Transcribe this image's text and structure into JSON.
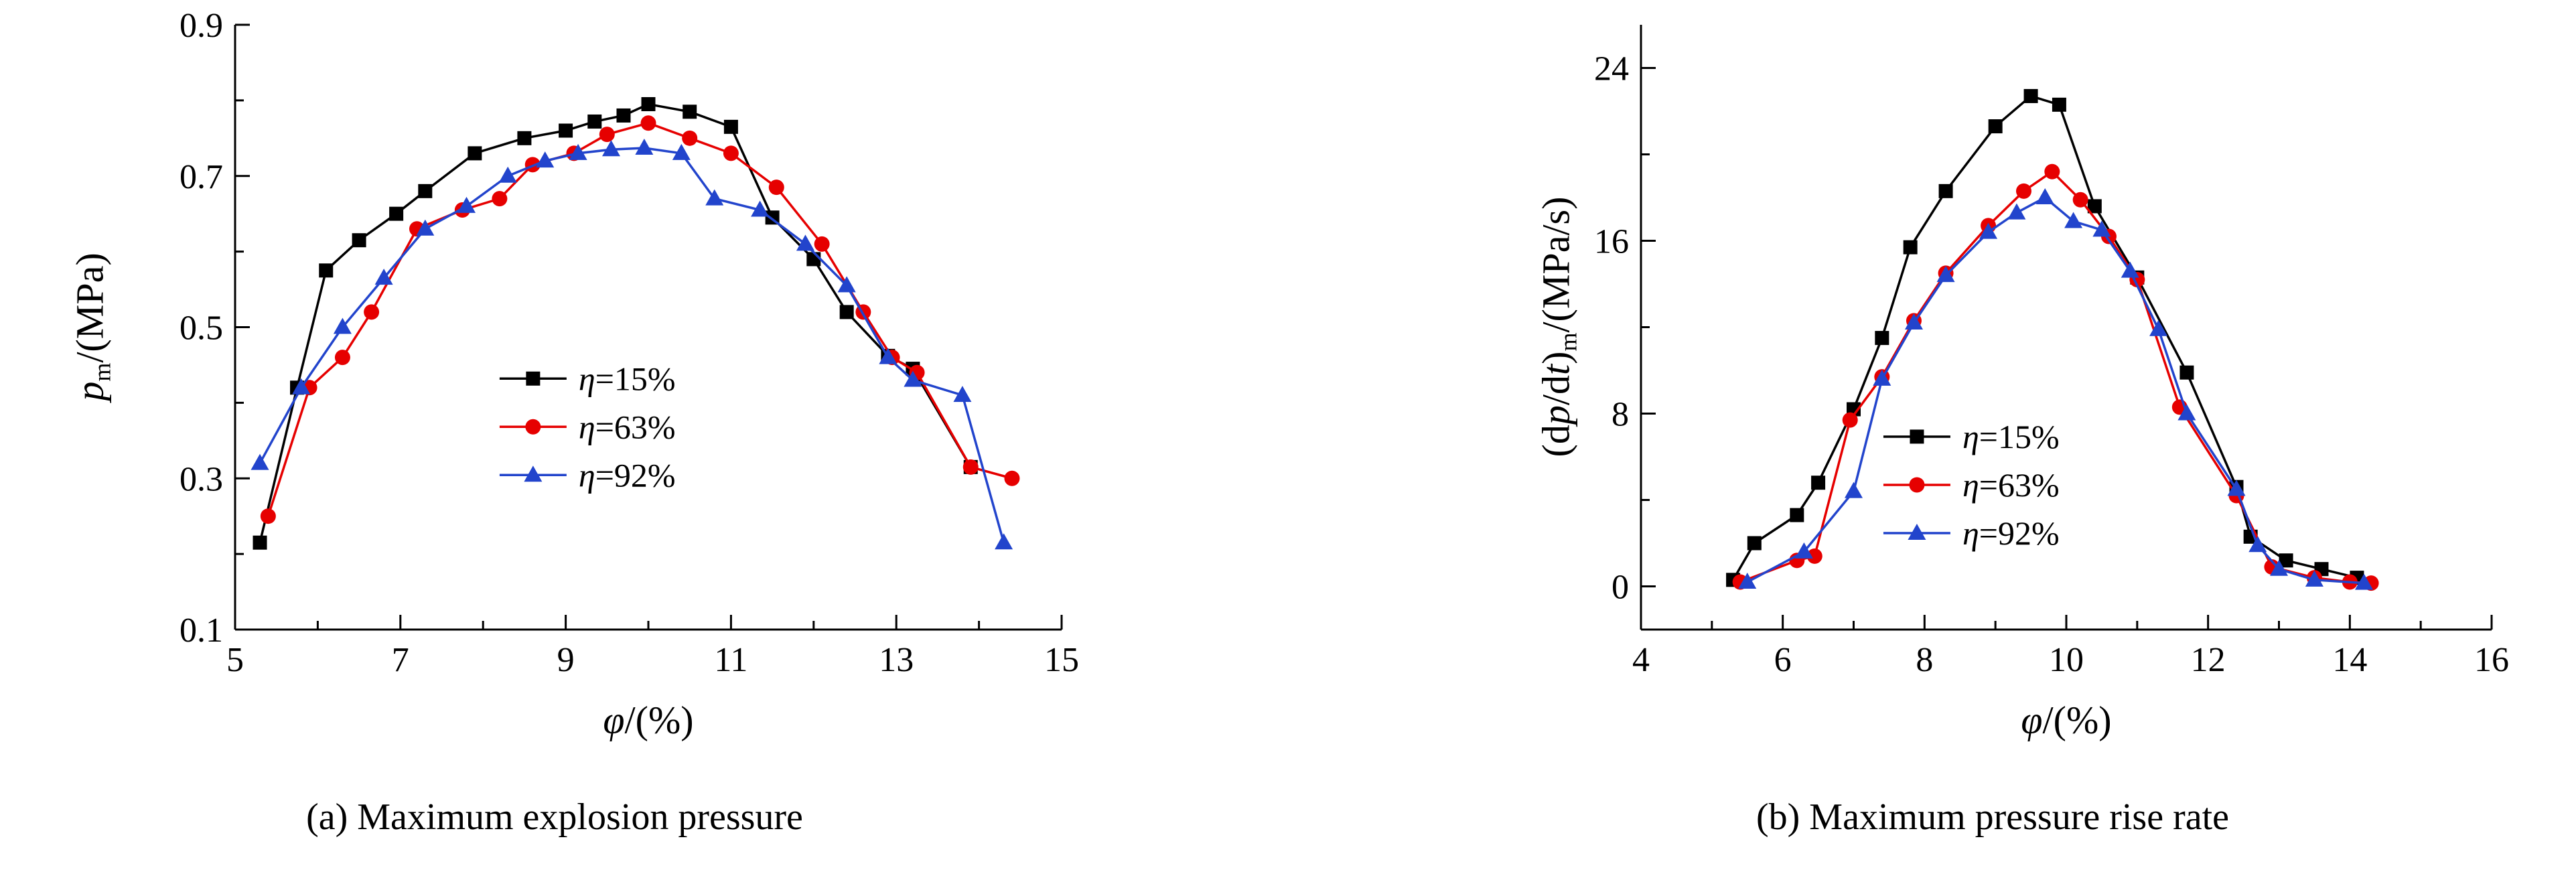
{
  "figure": {
    "captions": {
      "a": "(a) Maximum explosion pressure",
      "b": "(b) Maximum pressure rise rate"
    }
  },
  "colors": {
    "series_black": "#000000",
    "series_red": "#e60000",
    "series_blue": "#2244cc",
    "axis": "#000000",
    "background": "#ffffff"
  },
  "chart_data": [
    {
      "id": "a",
      "type": "line",
      "caption": "(a) Maximum explosion pressure",
      "xlabel_plain": "φ/(%)",
      "ylabel_plain": "pm/(MPa)",
      "xlabel_rich": [
        {
          "t": "φ",
          "s": "i"
        },
        {
          "t": "/(%)",
          "s": "n"
        }
      ],
      "ylabel_rich": [
        {
          "t": "p",
          "s": "i"
        },
        {
          "t": "m",
          "s": "sub"
        },
        {
          "t": "/(MPa)",
          "s": "n"
        }
      ],
      "xlim": [
        5,
        15
      ],
      "ylim": [
        0.1,
        0.9
      ],
      "xticks": [
        5,
        7,
        9,
        11,
        13,
        15
      ],
      "xtick_labels": [
        "5",
        "7",
        "9",
        "11",
        "13",
        "15"
      ],
      "xminor": [
        6,
        8,
        10,
        12,
        14
      ],
      "yticks": [
        0.1,
        0.3,
        0.5,
        0.7,
        0.9
      ],
      "ytick_labels": [
        "0.1",
        "0.3",
        "0.5",
        "0.7",
        "0.9"
      ],
      "yminor": [
        0.2,
        0.4,
        0.6,
        0.8
      ],
      "grid": false,
      "legend": {
        "x": 0.32,
        "y": 0.585,
        "dy": 72
      },
      "series": [
        {
          "name": "η=15%",
          "name_sym": "η",
          "name_rest": "=15%",
          "color": "#000000",
          "marker": "square",
          "points": [
            [
              5.3,
              0.215
            ],
            [
              5.75,
              0.42
            ],
            [
              6.1,
              0.575
            ],
            [
              6.5,
              0.615
            ],
            [
              6.95,
              0.65
            ],
            [
              7.3,
              0.68
            ],
            [
              7.9,
              0.73
            ],
            [
              8.5,
              0.75
            ],
            [
              9.0,
              0.76
            ],
            [
              9.35,
              0.772
            ],
            [
              9.7,
              0.78
            ],
            [
              10.0,
              0.795
            ],
            [
              10.5,
              0.785
            ],
            [
              11.0,
              0.765
            ],
            [
              11.5,
              0.645
            ],
            [
              12.0,
              0.59
            ],
            [
              12.4,
              0.52
            ],
            [
              12.9,
              0.462
            ],
            [
              13.2,
              0.445
            ],
            [
              13.9,
              0.315
            ]
          ]
        },
        {
          "name": "η=63%",
          "name_sym": "η",
          "name_rest": "=63%",
          "color": "#e60000",
          "marker": "circle",
          "points": [
            [
              5.4,
              0.25
            ],
            [
              5.9,
              0.42
            ],
            [
              6.3,
              0.46
            ],
            [
              6.65,
              0.52
            ],
            [
              7.2,
              0.63
            ],
            [
              7.75,
              0.655
            ],
            [
              8.2,
              0.67
            ],
            [
              8.6,
              0.715
            ],
            [
              9.1,
              0.73
            ],
            [
              9.5,
              0.755
            ],
            [
              10.0,
              0.77
            ],
            [
              10.5,
              0.75
            ],
            [
              11.0,
              0.73
            ],
            [
              11.55,
              0.685
            ],
            [
              12.1,
              0.61
            ],
            [
              12.6,
              0.52
            ],
            [
              12.95,
              0.46
            ],
            [
              13.25,
              0.44
            ],
            [
              13.9,
              0.315
            ],
            [
              14.4,
              0.3
            ]
          ]
        },
        {
          "name": "η=92%",
          "name_sym": "η",
          "name_rest": "=92%",
          "color": "#2244cc",
          "marker": "triangle",
          "points": [
            [
              5.3,
              0.32
            ],
            [
              5.8,
              0.42
            ],
            [
              6.3,
              0.5
            ],
            [
              6.8,
              0.565
            ],
            [
              7.3,
              0.63
            ],
            [
              7.8,
              0.66
            ],
            [
              8.3,
              0.7
            ],
            [
              8.75,
              0.72
            ],
            [
              9.15,
              0.73
            ],
            [
              9.55,
              0.735
            ],
            [
              9.95,
              0.737
            ],
            [
              10.4,
              0.73
            ],
            [
              10.8,
              0.67
            ],
            [
              11.35,
              0.655
            ],
            [
              11.9,
              0.61
            ],
            [
              12.4,
              0.555
            ],
            [
              12.9,
              0.46
            ],
            [
              13.2,
              0.43
            ],
            [
              13.8,
              0.41
            ],
            [
              14.3,
              0.215
            ]
          ]
        }
      ]
    },
    {
      "id": "b",
      "type": "line",
      "caption": "(b) Maximum pressure rise rate",
      "xlabel_plain": "φ/(%)",
      "ylabel_plain": "(dp/dt)m/(MPa/s)",
      "xlabel_rich": [
        {
          "t": "φ",
          "s": "i"
        },
        {
          "t": "/(%)",
          "s": "n"
        }
      ],
      "ylabel_rich": [
        {
          "t": "(d",
          "s": "n"
        },
        {
          "t": "p",
          "s": "i"
        },
        {
          "t": "/d",
          "s": "n"
        },
        {
          "t": "t",
          "s": "i"
        },
        {
          "t": ")",
          "s": "n"
        },
        {
          "t": "m",
          "s": "sub"
        },
        {
          "t": "/(MPa/s)",
          "s": "n"
        }
      ],
      "xlim": [
        4,
        16
      ],
      "ylim": [
        -2,
        26
      ],
      "xticks": [
        4,
        6,
        8,
        10,
        12,
        14,
        16
      ],
      "xtick_labels": [
        "4",
        "6",
        "8",
        "10",
        "12",
        "14",
        "16"
      ],
      "xminor": [
        5,
        7,
        9,
        11,
        13,
        15
      ],
      "yticks": [
        0,
        8,
        16,
        24
      ],
      "ytick_labels": [
        "0",
        "8",
        "16",
        "24"
      ],
      "yminor": [
        4,
        12,
        20
      ],
      "grid": false,
      "legend": {
        "x": 0.285,
        "y": 0.681,
        "dy": 72
      },
      "series": [
        {
          "name": "η=15%",
          "name_sym": "η",
          "name_rest": "=15%",
          "color": "#000000",
          "marker": "square",
          "points": [
            [
              5.3,
              0.3
            ],
            [
              5.6,
              2.0
            ],
            [
              6.2,
              3.3
            ],
            [
              6.5,
              4.8
            ],
            [
              7.0,
              8.2
            ],
            [
              7.4,
              11.5
            ],
            [
              7.8,
              15.7
            ],
            [
              8.3,
              18.3
            ],
            [
              9.0,
              21.3
            ],
            [
              9.5,
              22.7
            ],
            [
              9.9,
              22.3
            ],
            [
              10.4,
              17.6
            ],
            [
              11.0,
              14.3
            ],
            [
              11.7,
              9.9
            ],
            [
              12.4,
              4.6
            ],
            [
              12.6,
              2.3
            ],
            [
              13.1,
              1.2
            ],
            [
              13.6,
              0.8
            ],
            [
              14.1,
              0.4
            ]
          ]
        },
        {
          "name": "η=63%",
          "name_sym": "η",
          "name_rest": "=63%",
          "color": "#e60000",
          "marker": "circle",
          "points": [
            [
              5.4,
              0.2
            ],
            [
              6.2,
              1.2
            ],
            [
              6.45,
              1.4
            ],
            [
              6.95,
              7.7
            ],
            [
              7.4,
              9.7
            ],
            [
              7.85,
              12.3
            ],
            [
              8.3,
              14.5
            ],
            [
              8.9,
              16.7
            ],
            [
              9.4,
              18.3
            ],
            [
              9.8,
              19.2
            ],
            [
              10.2,
              17.9
            ],
            [
              10.6,
              16.2
            ],
            [
              11.0,
              14.2
            ],
            [
              11.6,
              8.3
            ],
            [
              12.4,
              4.2
            ],
            [
              12.9,
              0.9
            ],
            [
              13.5,
              0.4
            ],
            [
              14.0,
              0.2
            ],
            [
              14.3,
              0.15
            ]
          ]
        },
        {
          "name": "η=92%",
          "name_sym": "η",
          "name_rest": "=92%",
          "color": "#2244cc",
          "marker": "triangle",
          "points": [
            [
              5.5,
              0.2
            ],
            [
              6.3,
              1.6
            ],
            [
              7.0,
              4.4
            ],
            [
              7.4,
              9.6
            ],
            [
              7.85,
              12.2
            ],
            [
              8.3,
              14.4
            ],
            [
              8.9,
              16.4
            ],
            [
              9.3,
              17.3
            ],
            [
              9.7,
              18.0
            ],
            [
              10.1,
              16.9
            ],
            [
              10.5,
              16.5
            ],
            [
              10.9,
              14.6
            ],
            [
              11.3,
              11.9
            ],
            [
              11.7,
              8.0
            ],
            [
              12.4,
              4.5
            ],
            [
              12.7,
              1.9
            ],
            [
              13.0,
              0.8
            ],
            [
              13.5,
              0.3
            ],
            [
              14.2,
              0.15
            ]
          ]
        }
      ]
    }
  ]
}
